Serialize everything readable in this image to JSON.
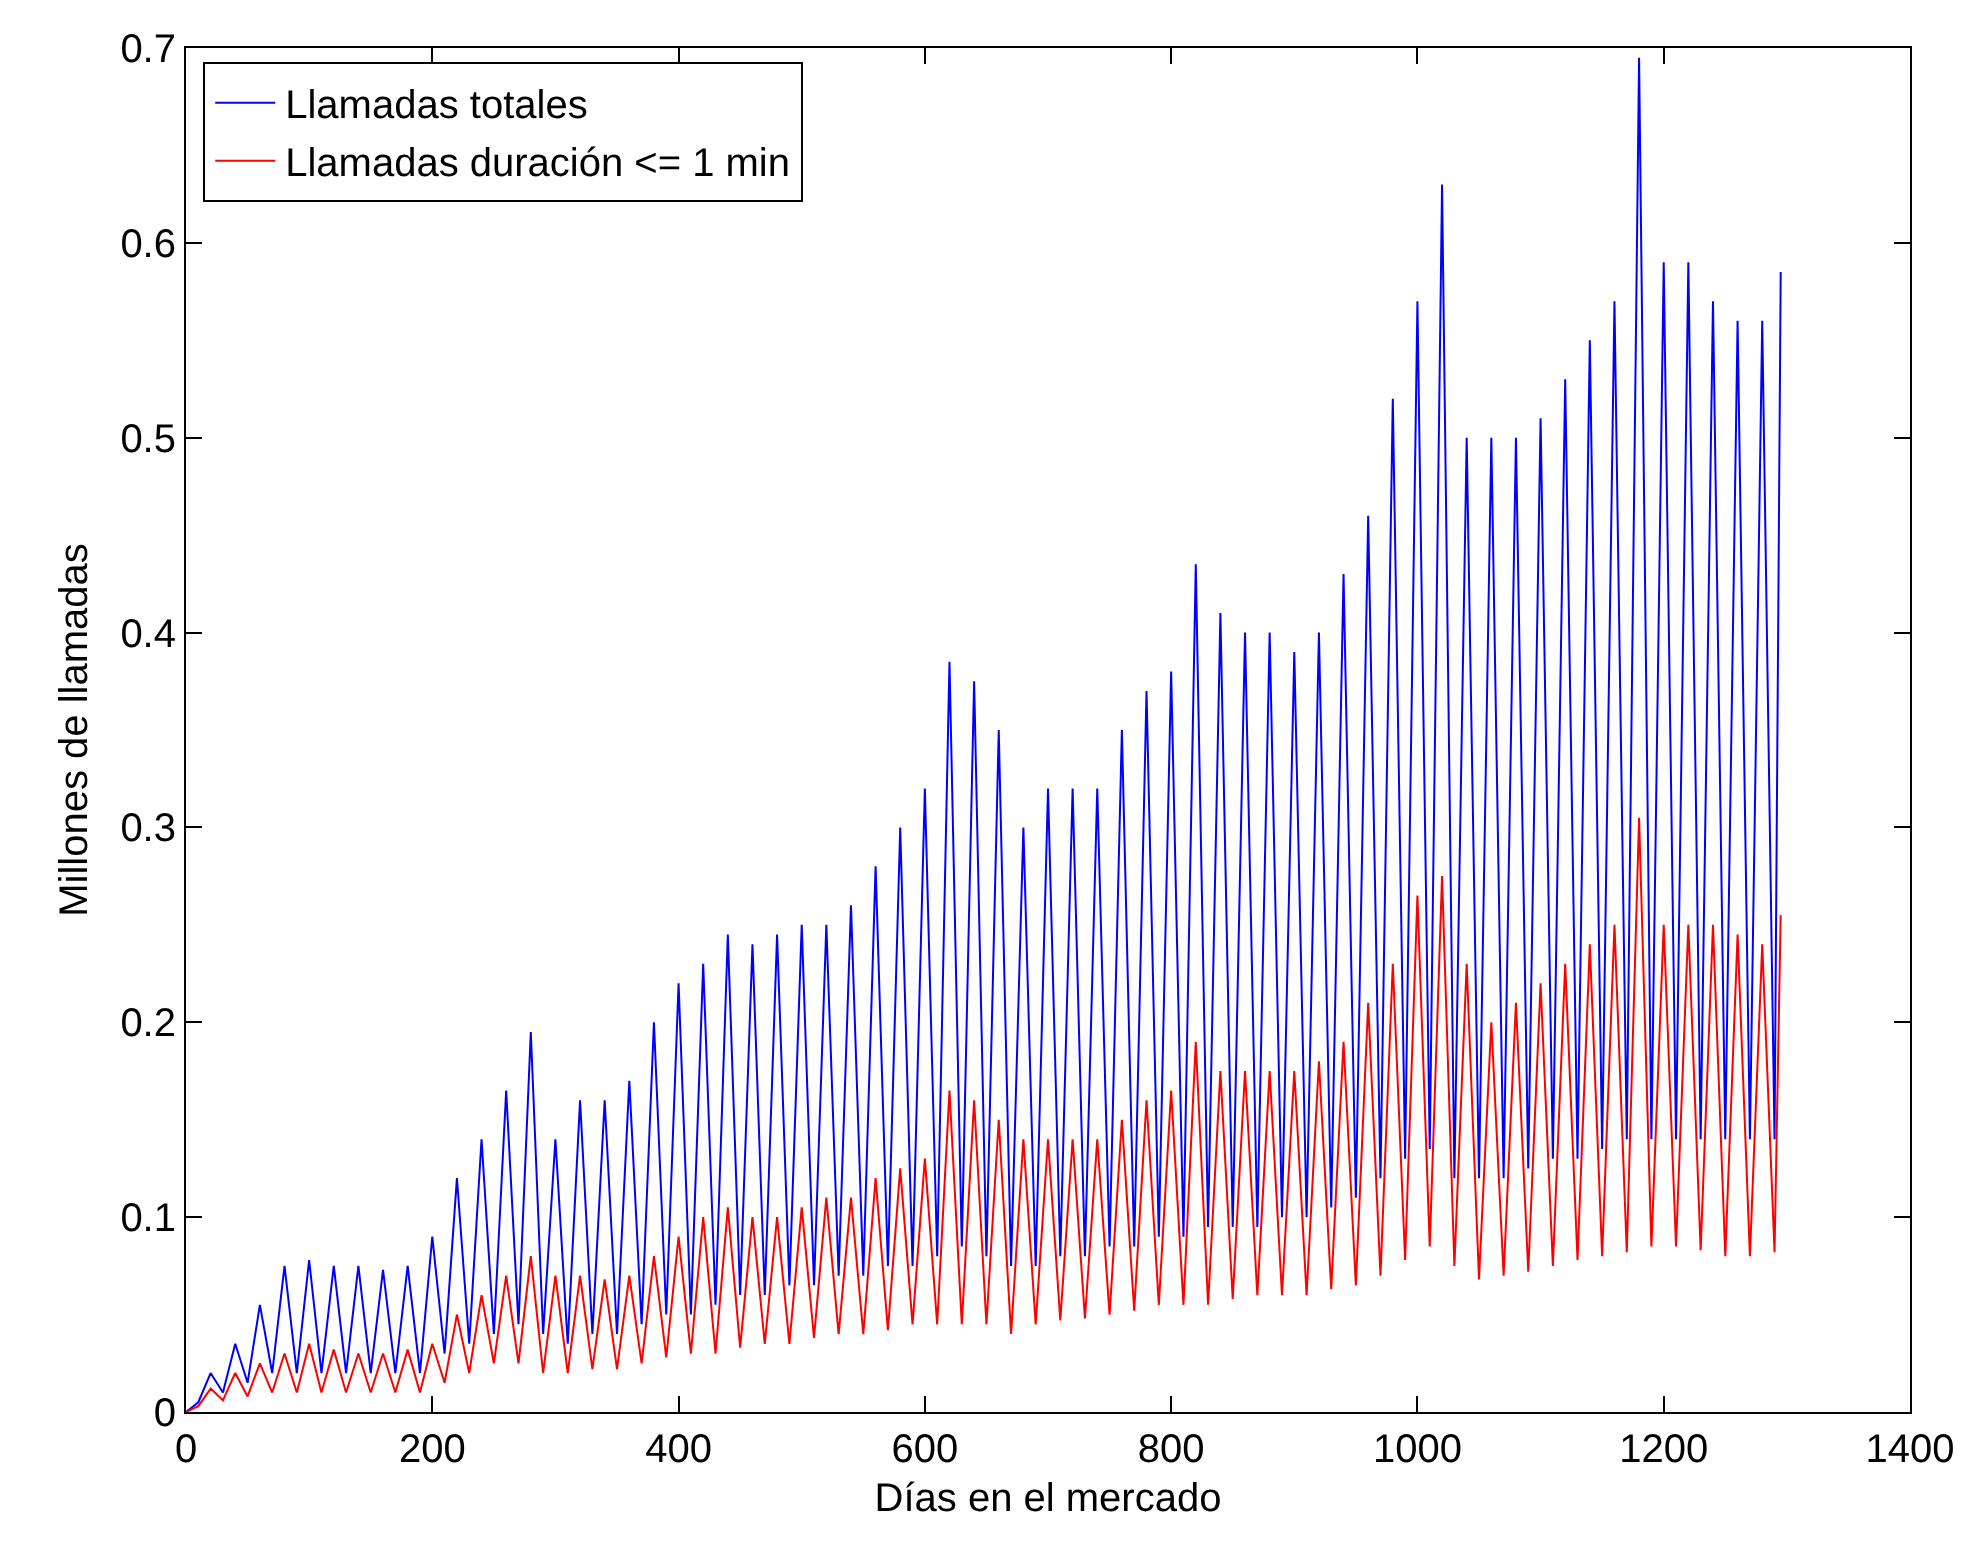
{
  "chart_data": {
    "type": "line",
    "xlabel": "Días en el mercado",
    "ylabel": "Millones de llamadas",
    "x": [
      0,
      10,
      20,
      30,
      40,
      50,
      60,
      70,
      80,
      90,
      100,
      110,
      120,
      130,
      140,
      150,
      160,
      170,
      180,
      190,
      200,
      210,
      220,
      230,
      240,
      250,
      260,
      270,
      280,
      290,
      300,
      310,
      320,
      330,
      340,
      350,
      360,
      370,
      380,
      390,
      400,
      410,
      420,
      430,
      440,
      450,
      460,
      470,
      480,
      490,
      500,
      510,
      520,
      530,
      540,
      550,
      560,
      570,
      580,
      590,
      600,
      610,
      620,
      630,
      640,
      650,
      660,
      670,
      680,
      690,
      700,
      710,
      720,
      730,
      740,
      750,
      760,
      770,
      780,
      790,
      800,
      810,
      820,
      830,
      840,
      850,
      860,
      870,
      880,
      890,
      900,
      910,
      920,
      930,
      940,
      950,
      960,
      970,
      980,
      990,
      1000,
      1010,
      1020,
      1030,
      1040,
      1050,
      1060,
      1070,
      1080,
      1090,
      1100,
      1110,
      1120,
      1130,
      1140,
      1150,
      1160,
      1170,
      1180,
      1190,
      1200,
      1210,
      1220,
      1230,
      1240,
      1250,
      1260,
      1270,
      1280,
      1290,
      1295
    ],
    "series": [
      {
        "name": "Llamadas totales",
        "color": "#0000ff",
        "values": [
          0,
          0.005,
          0.02,
          0.01,
          0.035,
          0.015,
          0.055,
          0.02,
          0.075,
          0.02,
          0.078,
          0.02,
          0.075,
          0.02,
          0.075,
          0.02,
          0.073,
          0.02,
          0.075,
          0.02,
          0.09,
          0.03,
          0.12,
          0.035,
          0.14,
          0.04,
          0.165,
          0.045,
          0.195,
          0.04,
          0.14,
          0.035,
          0.16,
          0.04,
          0.16,
          0.04,
          0.17,
          0.045,
          0.2,
          0.05,
          0.22,
          0.05,
          0.23,
          0.055,
          0.245,
          0.06,
          0.24,
          0.06,
          0.245,
          0.065,
          0.25,
          0.065,
          0.25,
          0.07,
          0.26,
          0.07,
          0.28,
          0.075,
          0.3,
          0.075,
          0.32,
          0.08,
          0.385,
          0.085,
          0.375,
          0.08,
          0.35,
          0.075,
          0.3,
          0.075,
          0.32,
          0.08,
          0.32,
          0.08,
          0.32,
          0.085,
          0.35,
          0.085,
          0.37,
          0.09,
          0.38,
          0.09,
          0.435,
          0.095,
          0.41,
          0.095,
          0.4,
          0.095,
          0.4,
          0.1,
          0.39,
          0.1,
          0.4,
          0.105,
          0.43,
          0.11,
          0.46,
          0.12,
          0.52,
          0.13,
          0.57,
          0.135,
          0.63,
          0.12,
          0.5,
          0.12,
          0.5,
          0.12,
          0.5,
          0.125,
          0.51,
          0.13,
          0.53,
          0.13,
          0.55,
          0.135,
          0.57,
          0.14,
          0.695,
          0.14,
          0.59,
          0.14,
          0.59,
          0.14,
          0.57,
          0.14,
          0.56,
          0.14,
          0.56,
          0.14,
          0.585
        ]
      },
      {
        "name": "Llamadas duración <= 1 min",
        "color": "#ff0000",
        "values": [
          0,
          0.003,
          0.012,
          0.006,
          0.02,
          0.008,
          0.025,
          0.01,
          0.03,
          0.01,
          0.035,
          0.01,
          0.032,
          0.01,
          0.03,
          0.01,
          0.03,
          0.01,
          0.032,
          0.01,
          0.035,
          0.015,
          0.05,
          0.02,
          0.06,
          0.025,
          0.07,
          0.025,
          0.08,
          0.02,
          0.07,
          0.02,
          0.07,
          0.022,
          0.068,
          0.022,
          0.07,
          0.025,
          0.08,
          0.028,
          0.09,
          0.03,
          0.1,
          0.03,
          0.105,
          0.033,
          0.1,
          0.035,
          0.1,
          0.035,
          0.105,
          0.038,
          0.11,
          0.04,
          0.11,
          0.04,
          0.12,
          0.042,
          0.125,
          0.045,
          0.13,
          0.045,
          0.165,
          0.045,
          0.16,
          0.045,
          0.15,
          0.04,
          0.14,
          0.045,
          0.14,
          0.047,
          0.14,
          0.048,
          0.14,
          0.05,
          0.15,
          0.052,
          0.16,
          0.055,
          0.165,
          0.055,
          0.19,
          0.055,
          0.175,
          0.058,
          0.175,
          0.06,
          0.175,
          0.06,
          0.175,
          0.06,
          0.18,
          0.063,
          0.19,
          0.065,
          0.21,
          0.07,
          0.23,
          0.078,
          0.265,
          0.085,
          0.275,
          0.075,
          0.23,
          0.068,
          0.2,
          0.07,
          0.21,
          0.072,
          0.22,
          0.075,
          0.23,
          0.078,
          0.24,
          0.08,
          0.25,
          0.082,
          0.305,
          0.085,
          0.25,
          0.085,
          0.25,
          0.083,
          0.25,
          0.08,
          0.245,
          0.08,
          0.24,
          0.082,
          0.255
        ]
      }
    ],
    "xlim": [
      0,
      1400
    ],
    "xticks": [
      0,
      200,
      400,
      600,
      800,
      1000,
      1200,
      1400
    ],
    "ylim": [
      0,
      0.7
    ],
    "yticks": [
      0,
      0.1,
      0.2,
      0.3,
      0.4,
      0.5,
      0.6,
      0.7
    ],
    "grid": false,
    "legend": "top left",
    "marker": "none",
    "line_style": "solid"
  }
}
